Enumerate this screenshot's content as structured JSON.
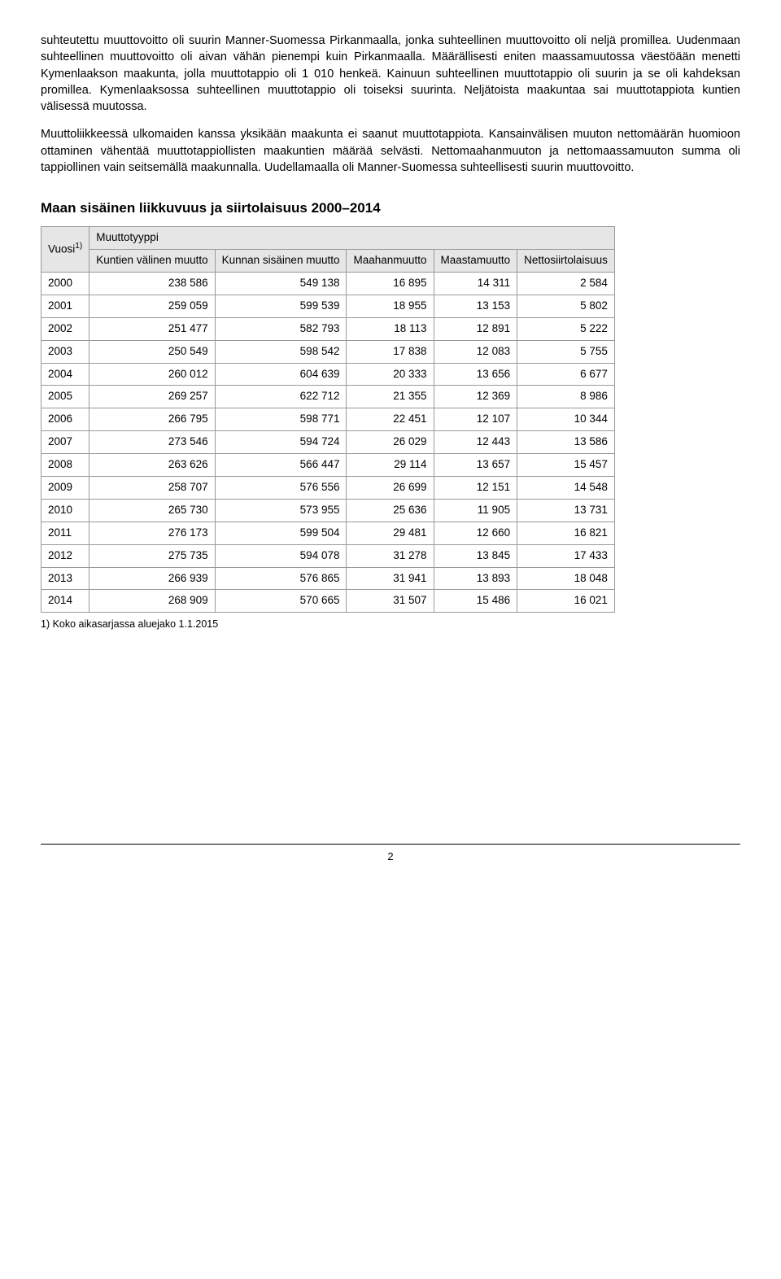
{
  "paragraphs": {
    "p1": "suhteutettu muuttovoitto oli suurin Manner-Suomessa Pirkanmaalla, jonka suhteellinen muuttovoitto oli neljä promillea. Uudenmaan suhteellinen muuttovoitto oli aivan vähän pienempi kuin Pirkanmaalla. Määrällisesti eniten maassamuutossa väestöään menetti Kymenlaakson maakunta, jolla muuttotappio oli 1 010 henkeä. Kainuun suhteellinen muuttotappio oli suurin ja se oli kahdeksan promillea. Kymenlaaksossa suhteellinen muuttotappio oli toiseksi suurinta. Neljätoista maakuntaa sai muuttotappiota kuntien välisessä muutossa.",
    "p2": "Muuttoliikkeessä ulkomaiden kanssa yksikään maakunta ei saanut muuttotappiota. Kansainvälisen muuton nettomäärän huomioon ottaminen vähentää muuttotappiollisten maakuntien määrää selvästi. Nettomaahanmuuton ja nettomaassamuuton summa oli tappiollinen vain seitsemällä maakunnalla. Uudellamaalla oli Manner-Suomessa suhteellisesti suurin muuttovoitto."
  },
  "table_title": "Maan sisäinen liikkuvuus ja siirtolaisuus 2000–2014",
  "headers": {
    "vuosi": "Vuosi",
    "sup": "1)",
    "muuttotyyppi": "Muuttotyyppi",
    "c1": "Kuntien välinen muutto",
    "c2": "Kunnan sisäinen muutto",
    "c3": "Maahanmuutto",
    "c4": "Maastamuutto",
    "c5": "Nettosiirtolaisuus"
  },
  "rows": [
    {
      "year": "2000",
      "c1": "238 586",
      "c2": "549 138",
      "c3": "16 895",
      "c4": "14 311",
      "c5": "2 584"
    },
    {
      "year": "2001",
      "c1": "259 059",
      "c2": "599 539",
      "c3": "18 955",
      "c4": "13 153",
      "c5": "5 802"
    },
    {
      "year": "2002",
      "c1": "251 477",
      "c2": "582 793",
      "c3": "18 113",
      "c4": "12 891",
      "c5": "5 222"
    },
    {
      "year": "2003",
      "c1": "250 549",
      "c2": "598 542",
      "c3": "17 838",
      "c4": "12 083",
      "c5": "5 755"
    },
    {
      "year": "2004",
      "c1": "260 012",
      "c2": "604 639",
      "c3": "20 333",
      "c4": "13 656",
      "c5": "6 677"
    },
    {
      "year": "2005",
      "c1": "269 257",
      "c2": "622 712",
      "c3": "21 355",
      "c4": "12 369",
      "c5": "8 986"
    },
    {
      "year": "2006",
      "c1": "266 795",
      "c2": "598 771",
      "c3": "22 451",
      "c4": "12 107",
      "c5": "10 344"
    },
    {
      "year": "2007",
      "c1": "273 546",
      "c2": "594 724",
      "c3": "26 029",
      "c4": "12 443",
      "c5": "13 586"
    },
    {
      "year": "2008",
      "c1": "263 626",
      "c2": "566 447",
      "c3": "29 114",
      "c4": "13 657",
      "c5": "15 457"
    },
    {
      "year": "2009",
      "c1": "258 707",
      "c2": "576 556",
      "c3": "26 699",
      "c4": "12 151",
      "c5": "14 548"
    },
    {
      "year": "2010",
      "c1": "265 730",
      "c2": "573 955",
      "c3": "25 636",
      "c4": "11 905",
      "c5": "13 731"
    },
    {
      "year": "2011",
      "c1": "276 173",
      "c2": "599 504",
      "c3": "29 481",
      "c4": "12 660",
      "c5": "16 821"
    },
    {
      "year": "2012",
      "c1": "275 735",
      "c2": "594 078",
      "c3": "31 278",
      "c4": "13 845",
      "c5": "17 433"
    },
    {
      "year": "2013",
      "c1": "266 939",
      "c2": "576 865",
      "c3": "31 941",
      "c4": "13 893",
      "c5": "18 048"
    },
    {
      "year": "2014",
      "c1": "268 909",
      "c2": "570 665",
      "c3": "31 507",
      "c4": "15 486",
      "c5": "16 021"
    }
  ],
  "footnote": "1) Koko aikasarjassa aluejako 1.1.2015",
  "page_number": "2"
}
